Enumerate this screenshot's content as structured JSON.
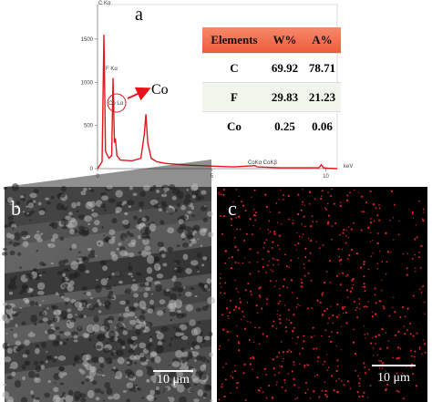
{
  "chart_data": {
    "type": "line",
    "x": [
      0,
      0.2,
      0.28,
      0.35,
      0.5,
      0.62,
      0.68,
      0.74,
      0.78,
      0.85,
      1.0,
      1.5,
      1.9,
      2.05,
      2.12,
      2.2,
      2.35,
      2.6,
      3,
      4,
      5,
      6,
      6.9,
      7,
      7.5,
      8,
      9,
      9.7,
      9.8,
      9.9,
      10.1,
      10.5
    ],
    "values": [
      0,
      80,
      1550,
      200,
      120,
      150,
      1050,
      300,
      350,
      150,
      100,
      90,
      120,
      400,
      630,
      300,
      120,
      80,
      60,
      40,
      30,
      20,
      35,
      20,
      15,
      10,
      10,
      10,
      45,
      10,
      5,
      0
    ],
    "color": "#e8141c",
    "xlim": [
      0,
      10.5
    ],
    "xticks": [
      0,
      5,
      10
    ],
    "xlabel": "keV",
    "ylim": [
      0,
      1900
    ],
    "yticks": [
      0,
      500,
      1000,
      1500
    ],
    "peak_labels": [
      "C Kα",
      "F Kα",
      "Co Lα",
      "CoKα CoKβ"
    ]
  },
  "panels": {
    "a": "a",
    "b": "b",
    "c": "c"
  },
  "annotation": "Co",
  "table": {
    "header": [
      "Elements",
      "W%",
      "A%"
    ],
    "rows": [
      [
        "C",
        "69.92",
        "78.71"
      ],
      [
        "F",
        "29.83",
        "21.23"
      ],
      [
        "Co",
        "0.25",
        "0.06"
      ]
    ]
  },
  "scale_bars": {
    "b": "10 μm",
    "c": "10 μm"
  }
}
